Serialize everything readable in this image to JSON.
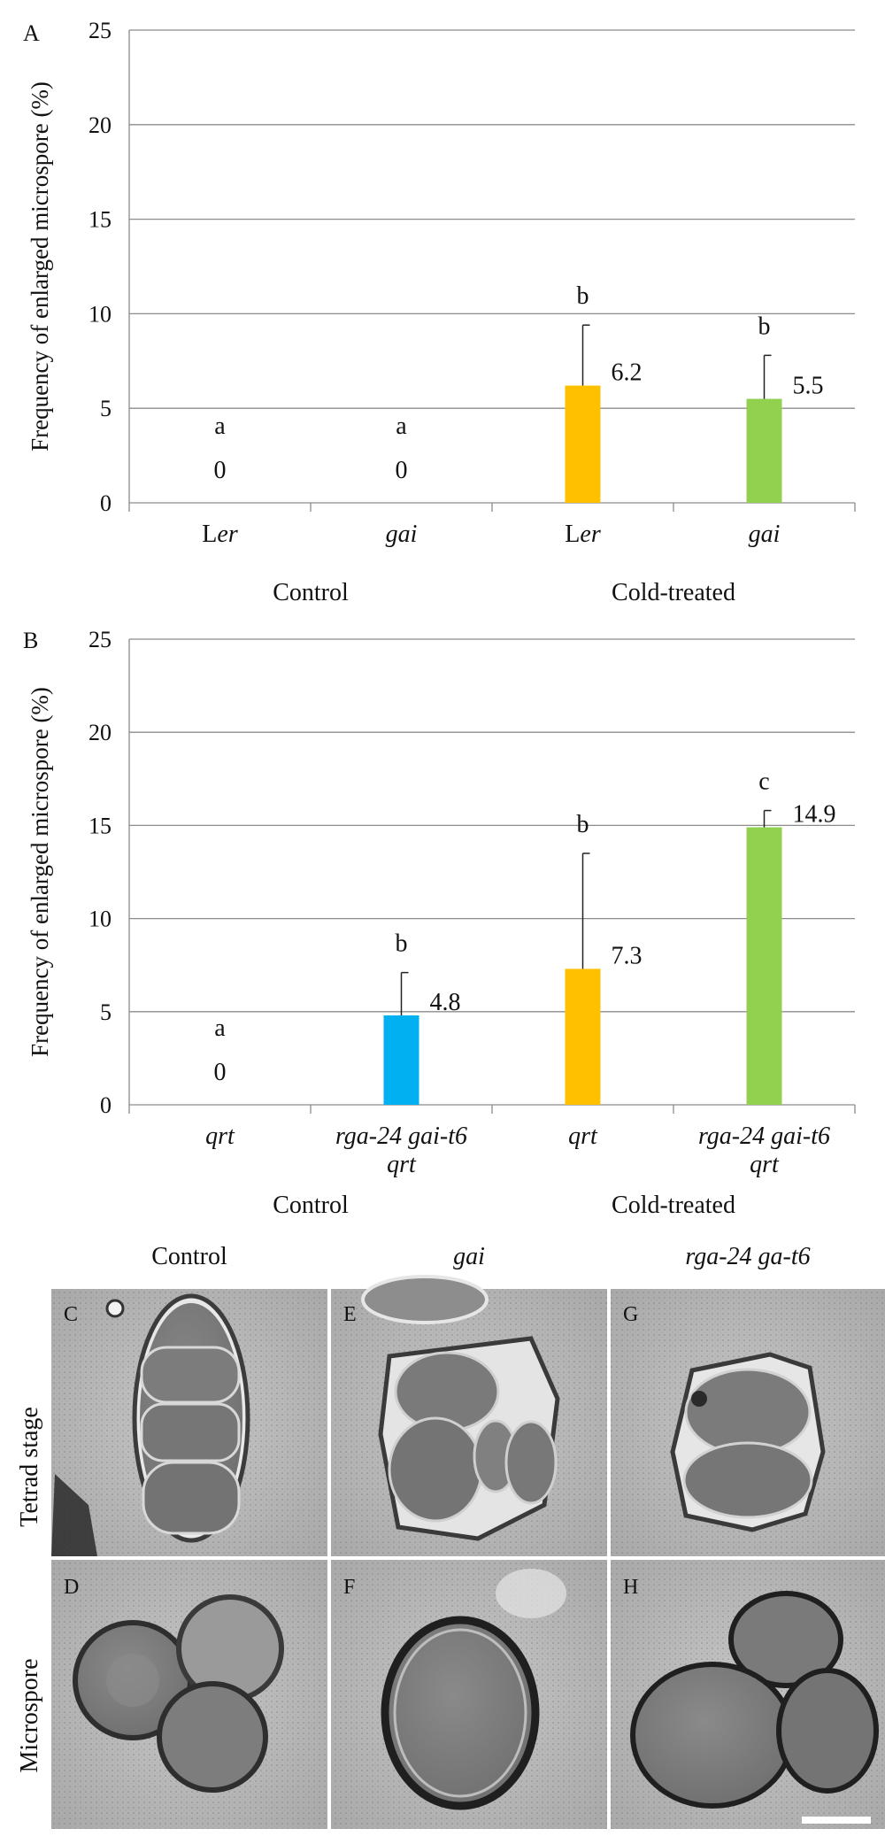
{
  "chart_data": [
    {
      "panel": "A",
      "type": "bar",
      "ylabel": "Frequency of enlarged microspore (%)",
      "ylim": [
        0,
        25
      ],
      "yticks": [
        "0",
        "5",
        "10",
        "15",
        "20",
        "25"
      ],
      "grid": true,
      "groups": [
        "Control",
        "Cold-treated"
      ],
      "categories": [
        {
          "prefix": "L",
          "italic": "er",
          "group": "Control"
        },
        {
          "prefix": "",
          "italic": "gai",
          "group": "Control"
        },
        {
          "prefix": "L",
          "italic": "er",
          "group": "Cold-treated"
        },
        {
          "prefix": "",
          "italic": "gai",
          "group": "Cold-treated"
        }
      ],
      "values": [
        0,
        0,
        6.2,
        5.5
      ],
      "value_labels": [
        "0",
        "0",
        "6.2",
        "5.5"
      ],
      "errors": [
        0,
        0,
        3.2,
        2.3
      ],
      "significance": [
        "a",
        "a",
        "b",
        "b"
      ],
      "colors": [
        "#00b0f0",
        "#00b0f0",
        "#ffc000",
        "#92d050"
      ]
    },
    {
      "panel": "B",
      "type": "bar",
      "ylabel": "Frequency of enlarged microspore (%)",
      "ylim": [
        0,
        25
      ],
      "yticks": [
        "0",
        "5",
        "10",
        "15",
        "20",
        "25"
      ],
      "grid": true,
      "groups": [
        "Control",
        "Cold-treated"
      ],
      "categories": [
        {
          "line1": "qrt",
          "line2": "",
          "group": "Control"
        },
        {
          "line1": "rga-24 gai-t6",
          "line2": "qrt",
          "group": "Control"
        },
        {
          "line1": "qrt",
          "line2": "",
          "group": "Cold-treated"
        },
        {
          "line1": "rga-24 gai-t6",
          "line2": "qrt",
          "group": "Cold-treated"
        }
      ],
      "values": [
        0,
        4.8,
        7.3,
        14.9
      ],
      "value_labels": [
        "0",
        "4.8",
        "7.3",
        "14.9"
      ],
      "errors": [
        0,
        2.3,
        6.2,
        0.9
      ],
      "significance": [
        "a",
        "b",
        "b",
        "c"
      ],
      "colors": [
        "#00b0f0",
        "#00b0f0",
        "#ffc000",
        "#92d050"
      ]
    }
  ],
  "micrographs": {
    "column_headers": [
      "Control",
      "gai",
      "rga-24 ga-t6"
    ],
    "row_labels": [
      "Tetrad stage",
      "Microspore"
    ],
    "panel_letters": [
      "C",
      "E",
      "G",
      "D",
      "F",
      "H"
    ]
  }
}
